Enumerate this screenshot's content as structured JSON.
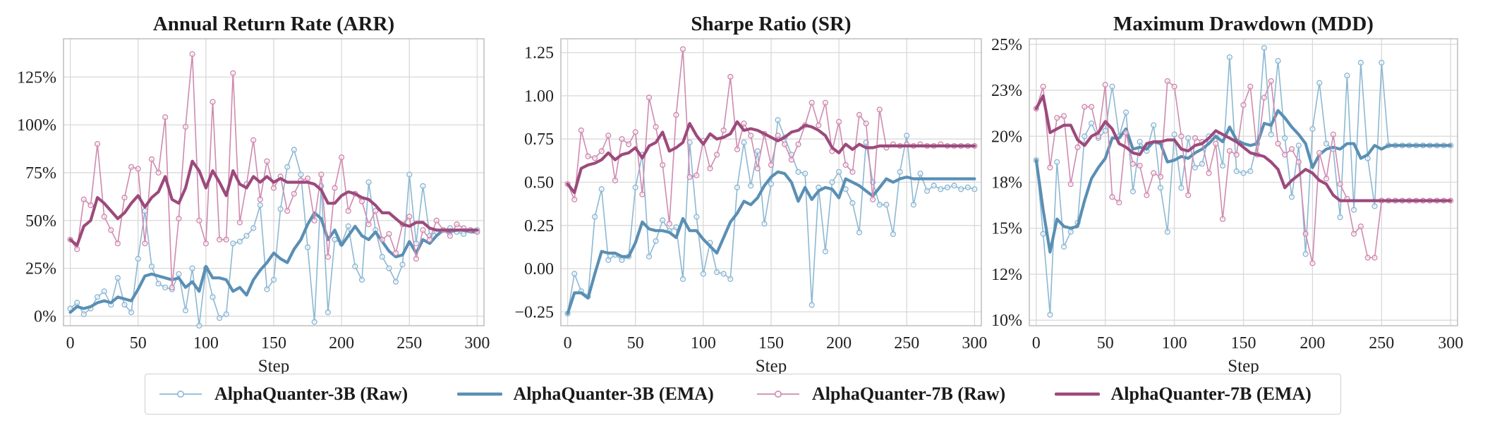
{
  "colors": {
    "series_3b": "#5a8fb4",
    "series_7b": "#9c4a7c",
    "series_3b_raw": "#8db8d3",
    "series_7b_raw": "#cf8ab0",
    "grid": "#d9d9d9",
    "axis": "#bdbdbd"
  },
  "chart_data": [
    {
      "type": "line",
      "title": "Annual Return Rate (ARR)",
      "xlabel": "Step",
      "ylabel": "",
      "xlim": [
        -5,
        305
      ],
      "ylim": [
        -0.05,
        1.45
      ],
      "xticks": [
        0,
        50,
        100,
        150,
        200,
        250,
        300
      ],
      "xtick_labels": [
        "0",
        "50",
        "100",
        "150",
        "200",
        "250",
        "300"
      ],
      "yticks": [
        0,
        0.25,
        0.5,
        0.75,
        1.0,
        1.25
      ],
      "ytick_labels": [
        "0%",
        "25%",
        "50%",
        "75%",
        "100%",
        "125%"
      ],
      "x": [
        0,
        5,
        10,
        15,
        20,
        25,
        30,
        35,
        40,
        45,
        50,
        55,
        60,
        65,
        70,
        75,
        80,
        85,
        90,
        95,
        100,
        105,
        110,
        115,
        120,
        125,
        130,
        135,
        140,
        145,
        150,
        155,
        160,
        165,
        170,
        175,
        180,
        185,
        190,
        195,
        200,
        205,
        210,
        215,
        220,
        225,
        230,
        235,
        240,
        245,
        250,
        255,
        260,
        265,
        270,
        275,
        280,
        285,
        290,
        295,
        300
      ],
      "series": [
        {
          "name": "AlphaQuanter-3B (Raw)",
          "values": [
            0.04,
            0.07,
            0.01,
            0.04,
            0.1,
            0.13,
            0.06,
            0.2,
            0.06,
            0.02,
            0.3,
            0.55,
            0.26,
            0.17,
            0.15,
            0.14,
            0.22,
            0.03,
            0.25,
            -0.05,
            0.25,
            0.1,
            -0.01,
            0.01,
            0.38,
            0.39,
            0.42,
            0.46,
            0.58,
            0.14,
            0.19,
            0.56,
            0.78,
            0.87,
            0.74,
            0.36,
            -0.03,
            0.68,
            0.02,
            0.4,
            0.38,
            0.47,
            0.26,
            0.19,
            0.7,
            0.45,
            0.31,
            0.25,
            0.18,
            0.27,
            0.74,
            0.38,
            0.68,
            0.42,
            0.44,
            0.45,
            0.46,
            0.44,
            0.43,
            0.45,
            0.45
          ]
        },
        {
          "name": "AlphaQuanter-3B (EMA)",
          "values": [
            0.02,
            0.05,
            0.04,
            0.05,
            0.07,
            0.08,
            0.07,
            0.1,
            0.09,
            0.08,
            0.14,
            0.21,
            0.22,
            0.21,
            0.2,
            0.19,
            0.2,
            0.15,
            0.18,
            0.13,
            0.26,
            0.2,
            0.2,
            0.19,
            0.13,
            0.15,
            0.11,
            0.19,
            0.24,
            0.28,
            0.33,
            0.3,
            0.28,
            0.35,
            0.4,
            0.48,
            0.54,
            0.51,
            0.4,
            0.45,
            0.37,
            0.42,
            0.47,
            0.42,
            0.4,
            0.44,
            0.39,
            0.34,
            0.31,
            0.32,
            0.39,
            0.33,
            0.4,
            0.38,
            0.42,
            0.45,
            0.44,
            0.45,
            0.45,
            0.44,
            0.44
          ]
        },
        {
          "name": "AlphaQuanter-7B (Raw)",
          "values": [
            0.4,
            0.35,
            0.61,
            0.58,
            0.9,
            0.52,
            0.45,
            0.38,
            0.62,
            0.78,
            0.77,
            0.38,
            0.82,
            0.75,
            1.04,
            0.15,
            0.51,
            0.99,
            1.37,
            0.5,
            0.38,
            1.12,
            0.4,
            0.4,
            1.27,
            0.49,
            0.69,
            0.92,
            0.61,
            0.81,
            0.67,
            0.73,
            0.55,
            0.64,
            0.71,
            0.72,
            0.5,
            0.74,
            0.31,
            0.67,
            0.83,
            0.55,
            0.64,
            0.6,
            0.48,
            0.55,
            0.4,
            0.43,
            0.33,
            0.48,
            0.52,
            0.3,
            0.45,
            0.4,
            0.5,
            0.45,
            0.42,
            0.48,
            0.46,
            0.45,
            0.44
          ]
        },
        {
          "name": "AlphaQuanter-7B (EMA)",
          "values": [
            0.4,
            0.37,
            0.47,
            0.5,
            0.62,
            0.59,
            0.55,
            0.51,
            0.54,
            0.59,
            0.63,
            0.57,
            0.62,
            0.65,
            0.73,
            0.61,
            0.59,
            0.67,
            0.81,
            0.76,
            0.67,
            0.76,
            0.7,
            0.63,
            0.76,
            0.69,
            0.67,
            0.73,
            0.7,
            0.73,
            0.7,
            0.72,
            0.7,
            0.7,
            0.7,
            0.7,
            0.69,
            0.66,
            0.59,
            0.59,
            0.63,
            0.65,
            0.64,
            0.62,
            0.61,
            0.58,
            0.54,
            0.54,
            0.51,
            0.48,
            0.47,
            0.49,
            0.49,
            0.46,
            0.45,
            0.45,
            0.45,
            0.45,
            0.45,
            0.45,
            0.45
          ]
        }
      ]
    },
    {
      "type": "line",
      "title": "Sharpe Ratio (SR)",
      "xlabel": "Step",
      "ylabel": "",
      "xlim": [
        -5,
        305
      ],
      "ylim": [
        -0.33,
        1.33
      ],
      "xticks": [
        0,
        50,
        100,
        150,
        200,
        250,
        300
      ],
      "xtick_labels": [
        "0",
        "50",
        "100",
        "150",
        "200",
        "250",
        "300"
      ],
      "yticks": [
        -0.25,
        0,
        0.25,
        0.5,
        0.75,
        1.0,
        1.25
      ],
      "ytick_labels": [
        "−0.25",
        "0.00",
        "0.25",
        "0.50",
        "0.75",
        "1.00",
        "1.25"
      ],
      "x": [
        0,
        5,
        10,
        15,
        20,
        25,
        30,
        35,
        40,
        45,
        50,
        55,
        60,
        65,
        70,
        75,
        80,
        85,
        90,
        95,
        100,
        105,
        110,
        115,
        120,
        125,
        130,
        135,
        140,
        145,
        150,
        155,
        160,
        165,
        170,
        175,
        180,
        185,
        190,
        195,
        200,
        205,
        210,
        215,
        220,
        225,
        230,
        235,
        240,
        245,
        250,
        255,
        260,
        265,
        270,
        275,
        280,
        285,
        290,
        295,
        300
      ],
      "series": [
        {
          "name": "AlphaQuanter-3B (Raw)",
          "values": [
            -0.26,
            -0.03,
            -0.13,
            -0.16,
            0.3,
            0.46,
            0.05,
            0.08,
            0.05,
            0.07,
            0.47,
            0.66,
            0.07,
            0.16,
            0.28,
            0.22,
            0.24,
            -0.06,
            0.73,
            0.3,
            -0.03,
            0.15,
            -0.02,
            -0.03,
            -0.06,
            0.47,
            0.73,
            0.48,
            0.68,
            0.26,
            0.49,
            0.86,
            0.76,
            0.66,
            0.56,
            0.55,
            -0.21,
            0.47,
            0.1,
            0.5,
            0.56,
            0.46,
            0.38,
            0.21,
            0.73,
            0.5,
            0.37,
            0.37,
            0.2,
            0.56,
            0.77,
            0.37,
            0.55,
            0.45,
            0.48,
            0.46,
            0.47,
            0.48,
            0.46,
            0.47,
            0.46
          ]
        },
        {
          "name": "AlphaQuanter-3B (EMA)",
          "values": [
            -0.26,
            -0.14,
            -0.14,
            -0.17,
            -0.03,
            0.1,
            0.09,
            0.09,
            0.07,
            0.07,
            0.15,
            0.27,
            0.23,
            0.22,
            0.22,
            0.21,
            0.18,
            0.29,
            0.22,
            0.22,
            0.17,
            0.13,
            0.09,
            0.18,
            0.27,
            0.32,
            0.39,
            0.37,
            0.41,
            0.48,
            0.53,
            0.56,
            0.55,
            0.5,
            0.39,
            0.47,
            0.4,
            0.45,
            0.47,
            0.46,
            0.41,
            0.52,
            0.5,
            0.48,
            0.45,
            0.42,
            0.47,
            0.52,
            0.5,
            0.52,
            0.53,
            0.52,
            0.52,
            0.52,
            0.52,
            0.52,
            0.52,
            0.52,
            0.52,
            0.52,
            0.52
          ]
        },
        {
          "name": "AlphaQuanter-7B (Raw)",
          "values": [
            0.49,
            0.4,
            0.8,
            0.65,
            0.64,
            0.68,
            0.77,
            0.51,
            0.75,
            0.72,
            0.79,
            0.43,
            0.99,
            0.82,
            0.6,
            0.26,
            0.89,
            1.27,
            0.53,
            0.54,
            0.74,
            0.58,
            0.66,
            0.8,
            1.11,
            0.69,
            0.84,
            0.77,
            0.58,
            0.78,
            0.6,
            0.77,
            0.72,
            0.63,
            0.72,
            0.83,
            0.96,
            0.83,
            0.96,
            0.68,
            0.85,
            0.6,
            0.56,
            0.89,
            0.84,
            0.4,
            0.92,
            0.7,
            0.72,
            0.71,
            0.72,
            0.71,
            0.72,
            0.71,
            0.71,
            0.72,
            0.71,
            0.71,
            0.71,
            0.71,
            0.71
          ]
        },
        {
          "name": "AlphaQuanter-7B (EMA)",
          "values": [
            0.49,
            0.44,
            0.58,
            0.6,
            0.61,
            0.63,
            0.67,
            0.63,
            0.66,
            0.67,
            0.7,
            0.64,
            0.71,
            0.73,
            0.79,
            0.68,
            0.7,
            0.73,
            0.84,
            0.77,
            0.72,
            0.78,
            0.75,
            0.76,
            0.78,
            0.85,
            0.8,
            0.81,
            0.8,
            0.78,
            0.76,
            0.74,
            0.76,
            0.79,
            0.8,
            0.83,
            0.82,
            0.8,
            0.77,
            0.7,
            0.67,
            0.72,
            0.69,
            0.72,
            0.7,
            0.7,
            0.71,
            0.71,
            0.71,
            0.71,
            0.71,
            0.71,
            0.71,
            0.71,
            0.71,
            0.71,
            0.71,
            0.71,
            0.71,
            0.71,
            0.71
          ]
        }
      ]
    },
    {
      "type": "line",
      "title": "Maximum Drawdown (MDD)",
      "xlabel": "Step",
      "ylabel": "",
      "xlim": [
        -5,
        305
      ],
      "ylim": [
        0.097,
        0.253
      ],
      "xticks": [
        0,
        50,
        100,
        150,
        200,
        250,
        300
      ],
      "xtick_labels": [
        "0",
        "50",
        "100",
        "150",
        "200",
        "250",
        "300"
      ],
      "yticks": [
        0.1,
        0.125,
        0.15,
        0.175,
        0.2,
        0.225,
        0.25
      ],
      "ytick_labels": [
        "10%",
        "12%",
        "15%",
        "18%",
        "20%",
        "23%",
        "25%"
      ],
      "x": [
        0,
        5,
        10,
        15,
        20,
        25,
        30,
        35,
        40,
        45,
        50,
        55,
        60,
        65,
        70,
        75,
        80,
        85,
        90,
        95,
        100,
        105,
        110,
        115,
        120,
        125,
        130,
        135,
        140,
        145,
        150,
        155,
        160,
        165,
        170,
        175,
        180,
        185,
        190,
        195,
        200,
        205,
        210,
        215,
        220,
        225,
        230,
        235,
        240,
        245,
        250,
        255,
        260,
        265,
        270,
        275,
        280,
        285,
        290,
        295,
        300
      ],
      "series": [
        {
          "name": "AlphaQuanter-3B (Raw)",
          "values": [
            0.187,
            0.147,
            0.103,
            0.186,
            0.14,
            0.148,
            0.153,
            0.2,
            0.207,
            0.199,
            0.203,
            0.227,
            0.2,
            0.213,
            0.17,
            0.197,
            0.192,
            0.206,
            0.172,
            0.148,
            0.201,
            0.172,
            0.199,
            0.183,
            0.185,
            0.2,
            0.201,
            0.184,
            0.243,
            0.181,
            0.18,
            0.181,
            0.196,
            0.248,
            0.201,
            0.241,
            0.199,
            0.167,
            0.195,
            0.136,
            0.204,
            0.229,
            0.196,
            0.193,
            0.156,
            0.233,
            0.16,
            0.24,
            0.188,
            0.162,
            0.24,
            0.195,
            0.195,
            0.195,
            0.195,
            0.195,
            0.195,
            0.195,
            0.195,
            0.195,
            0.195
          ]
        },
        {
          "name": "AlphaQuanter-3B (EMA)",
          "values": [
            0.187,
            0.16,
            0.137,
            0.155,
            0.151,
            0.15,
            0.151,
            0.165,
            0.177,
            0.183,
            0.188,
            0.199,
            0.199,
            0.204,
            0.193,
            0.194,
            0.193,
            0.197,
            0.196,
            0.186,
            0.187,
            0.189,
            0.188,
            0.191,
            0.193,
            0.196,
            0.2,
            0.197,
            0.205,
            0.198,
            0.196,
            0.195,
            0.196,
            0.207,
            0.206,
            0.214,
            0.21,
            0.205,
            0.201,
            0.196,
            0.183,
            0.19,
            0.193,
            0.194,
            0.193,
            0.196,
            0.196,
            0.188,
            0.19,
            0.195,
            0.193,
            0.195,
            0.195,
            0.195,
            0.195,
            0.195,
            0.195,
            0.195,
            0.195,
            0.195,
            0.195
          ]
        },
        {
          "name": "AlphaQuanter-7B (Raw)",
          "values": [
            0.215,
            0.227,
            0.183,
            0.21,
            0.211,
            0.174,
            0.194,
            0.216,
            0.216,
            0.2,
            0.228,
            0.167,
            0.164,
            0.202,
            0.185,
            0.184,
            0.168,
            0.18,
            0.178,
            0.23,
            0.227,
            0.2,
            0.168,
            0.199,
            0.197,
            0.18,
            0.196,
            0.155,
            0.192,
            0.19,
            0.217,
            0.227,
            0.19,
            0.221,
            0.23,
            0.196,
            0.19,
            0.193,
            0.186,
            0.147,
            0.131,
            0.191,
            0.177,
            0.201,
            0.174,
            0.166,
            0.147,
            0.151,
            0.134,
            0.134,
            0.165,
            0.165,
            0.165,
            0.165,
            0.165,
            0.165,
            0.165,
            0.165,
            0.165,
            0.165,
            0.165
          ]
        },
        {
          "name": "AlphaQuanter-7B (EMA)",
          "values": [
            0.215,
            0.222,
            0.202,
            0.204,
            0.206,
            0.206,
            0.198,
            0.195,
            0.2,
            0.202,
            0.208,
            0.204,
            0.196,
            0.194,
            0.191,
            0.19,
            0.196,
            0.197,
            0.197,
            0.198,
            0.198,
            0.193,
            0.192,
            0.195,
            0.196,
            0.199,
            0.203,
            0.201,
            0.199,
            0.197,
            0.194,
            0.191,
            0.19,
            0.189,
            0.186,
            0.182,
            0.172,
            0.176,
            0.179,
            0.182,
            0.18,
            0.176,
            0.174,
            0.168,
            0.165,
            0.165,
            0.165,
            0.165,
            0.165,
            0.165,
            0.165,
            0.165,
            0.165,
            0.165,
            0.165,
            0.165,
            0.165,
            0.165,
            0.165,
            0.165,
            0.165
          ]
        }
      ]
    }
  ],
  "legend": {
    "items": [
      {
        "label": "AlphaQuanter-3B (Raw)",
        "style": "raw",
        "color": "#8db8d3"
      },
      {
        "label": "AlphaQuanter-3B (EMA)",
        "style": "ema",
        "color": "#5a8fb4"
      },
      {
        "label": "AlphaQuanter-7B (Raw)",
        "style": "raw",
        "color": "#cf8ab0"
      },
      {
        "label": "AlphaQuanter-7B (EMA)",
        "style": "ema",
        "color": "#9c4a7c"
      }
    ]
  }
}
